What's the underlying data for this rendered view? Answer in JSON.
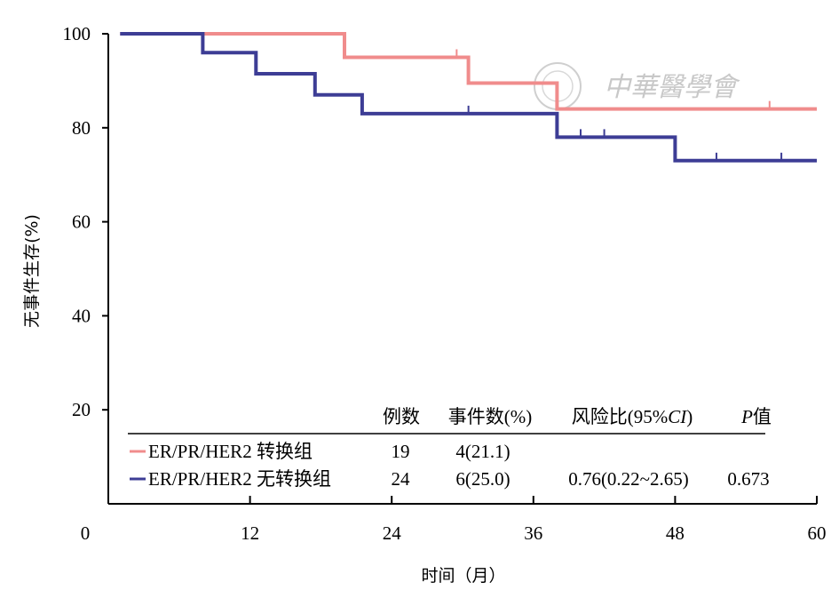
{
  "chart_data": {
    "type": "line",
    "step": true,
    "xlabel": "时间（月）",
    "ylabel": "无事件生存(%)",
    "xlim": [
      0,
      60
    ],
    "ylim": [
      0,
      100
    ],
    "x_tick_values": [
      12,
      24,
      36,
      48,
      60
    ],
    "x_tick_labels": [
      "12",
      "24",
      "36",
      "48",
      "60"
    ],
    "y_tick_values": [
      20,
      40,
      60,
      80,
      100
    ],
    "y_tick_labels": [
      "20",
      "40",
      "60",
      "80",
      "100"
    ],
    "origin_label": "0",
    "colors": {
      "pink": "#f08c8c",
      "blue": "#3d3d95"
    },
    "series": [
      {
        "name": "ER/PR/HER2 转换组",
        "color": "#f08c8c",
        "points": [
          [
            1,
            100
          ],
          [
            20,
            100
          ],
          [
            20,
            95
          ],
          [
            30.5,
            95
          ],
          [
            30.5,
            89.5
          ],
          [
            38,
            89.5
          ],
          [
            38,
            84
          ],
          [
            60,
            84
          ]
        ],
        "censor_x": [
          29.5,
          38,
          56
        ]
      },
      {
        "name": "ER/PR/HER2 无转换组",
        "color": "#3d3d95",
        "points": [
          [
            1,
            100
          ],
          [
            8,
            100
          ],
          [
            8,
            96
          ],
          [
            12.5,
            96
          ],
          [
            12.5,
            91.5
          ],
          [
            17.5,
            91.5
          ],
          [
            17.5,
            87
          ],
          [
            21.5,
            87
          ],
          [
            21.5,
            83
          ],
          [
            38,
            83
          ],
          [
            38,
            78
          ],
          [
            48,
            78
          ],
          [
            48,
            73
          ],
          [
            60,
            73
          ]
        ],
        "censor_x": [
          30.5,
          40,
          42,
          51.5,
          57
        ]
      }
    ],
    "table": {
      "headers": [
        "例数",
        "事件数(%)",
        "风险比(95%",
        "CI",
        ")",
        "P",
        "值"
      ],
      "rows": [
        {
          "label": "ER/PR/HER2 转换组",
          "n": "19",
          "events": "4(21.1)",
          "hr": "",
          "p": ""
        },
        {
          "label": "ER/PR/HER2 无转换组",
          "n": "24",
          "events": "6(25.0)",
          "hr": "0.76(0.22~2.65)",
          "p": "0.673"
        }
      ]
    }
  },
  "watermark": {
    "text": "中華醫學會"
  }
}
